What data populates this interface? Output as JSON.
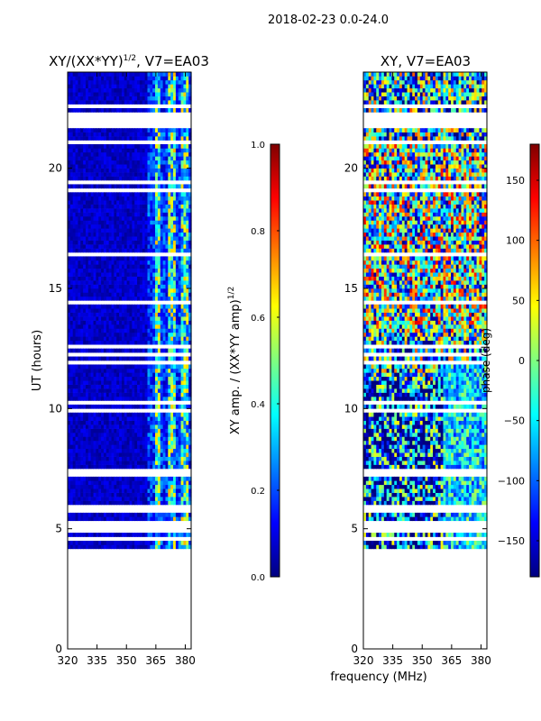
{
  "figure": {
    "suptitle": "2018-02-23 0.0-24.0",
    "xlabel_shared": "frequency (MHz)"
  },
  "colors": {
    "jet": [
      "#00007f",
      "#0000ff",
      "#007fff",
      "#00ffff",
      "#7fff7f",
      "#ffff00",
      "#ff7f00",
      "#ff0000",
      "#7f0000"
    ]
  },
  "chart_data": [
    {
      "type": "heatmap",
      "title": "XY/(XX*YY)",
      "title_sup": "1/2",
      "title_suffix": ", V7=EA03",
      "xlabel": "",
      "ylabel": "UT (hours)",
      "xlim": [
        320,
        383
      ],
      "ylim": [
        0,
        24
      ],
      "xticks": [
        "320",
        "335",
        "350",
        "365",
        "380"
      ],
      "xtick_values": [
        320,
        335,
        350,
        365,
        380
      ],
      "yticks": [
        "0",
        "5",
        "10",
        "15",
        "20"
      ],
      "ytick_values": [
        0,
        5,
        10,
        15,
        20
      ],
      "data_start_hour": 4.0,
      "data_gap_hours": [
        [
          21.7,
          22.3
        ]
      ],
      "bright_band_mhz": [
        360,
        383
      ],
      "value_range_low_band": [
        0.0,
        0.15
      ],
      "value_range_high_band": [
        0.15,
        0.75
      ],
      "colorbar": {
        "label": "XY amp. / (XX*YY amp)",
        "label_sup": "1/2",
        "ticks": [
          "0.0",
          "0.2",
          "0.4",
          "0.6",
          "0.8",
          "1.0"
        ],
        "tick_values": [
          0.0,
          0.2,
          0.4,
          0.6,
          0.8,
          1.0
        ],
        "range": [
          0.0,
          1.0
        ]
      }
    },
    {
      "type": "heatmap",
      "title": "XY, V7=EA03",
      "xlabel": "frequency (MHz)",
      "ylabel": "",
      "xlim": [
        320,
        383
      ],
      "ylim": [
        0,
        24
      ],
      "xticks": [
        "320",
        "335",
        "350",
        "365",
        "380"
      ],
      "xtick_values": [
        320,
        335,
        350,
        365,
        380
      ],
      "yticks": [
        "0",
        "5",
        "10",
        "15",
        "20"
      ],
      "ytick_values": [
        0,
        5,
        10,
        15,
        20
      ],
      "data_start_hour": 4.0,
      "data_gap_hours": [
        [
          21.7,
          22.3
        ]
      ],
      "value_range": [
        -180,
        180
      ],
      "colorbar": {
        "label": "phase (deg)",
        "ticks": [
          "−150",
          "−100",
          "−50",
          "0",
          "50",
          "100",
          "150"
        ],
        "tick_values": [
          -150,
          -100,
          -50,
          0,
          50,
          100,
          150
        ],
        "range": [
          -180,
          180
        ]
      }
    }
  ]
}
